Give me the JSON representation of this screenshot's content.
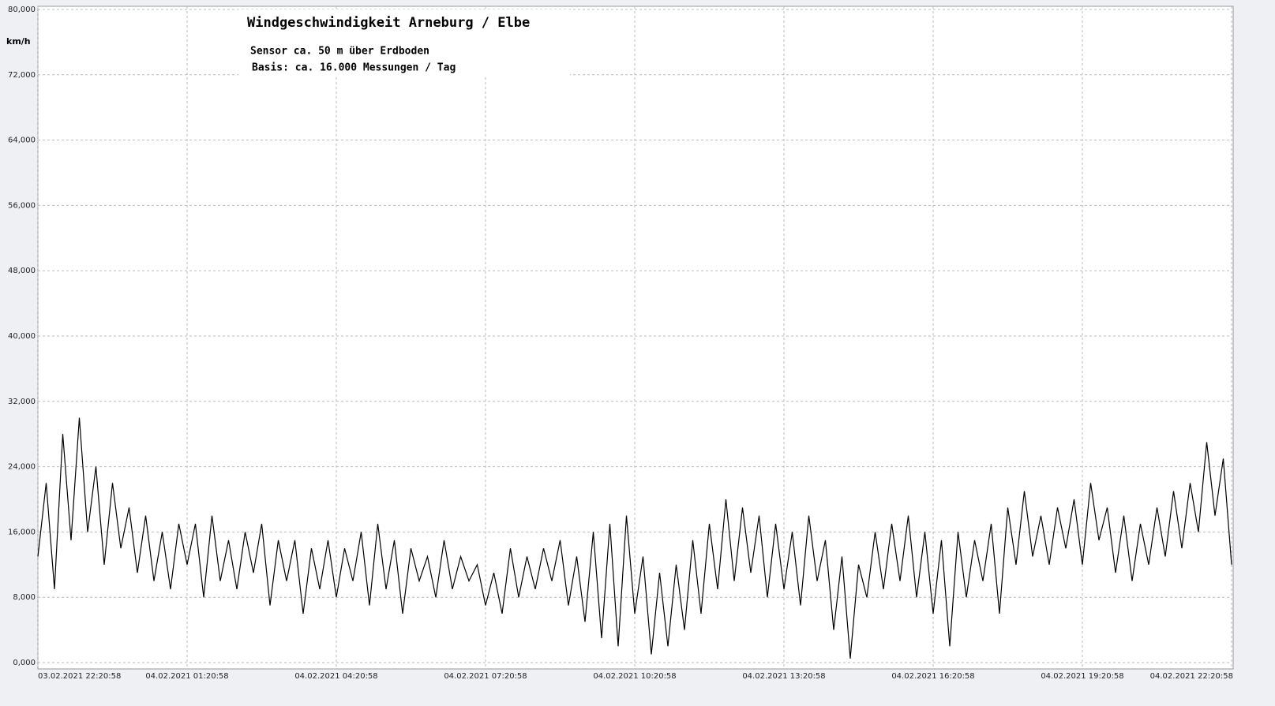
{
  "chart_data": {
    "type": "line",
    "title": "Windgeschwindigkeit  Arneburg / Elbe",
    "subtitle": [
      "Sensor ca. 50 m über Erdboden",
      "Basis: ca. 16.000 Messungen / Tag"
    ],
    "y_label": "km/h",
    "grid": true,
    "ylim": [
      0,
      80
    ],
    "yticks": [
      {
        "value": 0,
        "label": "0,000"
      },
      {
        "value": 8,
        "label": "8,000"
      },
      {
        "value": 16,
        "label": "16,000"
      },
      {
        "value": 24,
        "label": "24,000"
      },
      {
        "value": 32,
        "label": "32,000"
      },
      {
        "value": 40,
        "label": "40,000"
      },
      {
        "value": 48,
        "label": "48,000"
      },
      {
        "value": 56,
        "label": "56,000"
      },
      {
        "value": 64,
        "label": "64,000"
      },
      {
        "value": 72,
        "label": "72,000"
      },
      {
        "value": 80,
        "label": "80,000"
      }
    ],
    "xlim": [
      "03.02.2021 22:20:58",
      "04.02.2021 22:20:58"
    ],
    "xticks": [
      "03.02.2021 22:20:58",
      "04.02.2021 01:20:58",
      "04.02.2021 04:20:58",
      "04.02.2021 07:20:58",
      "04.02.2021 10:20:58",
      "04.02.2021 13:20:58",
      "04.02.2021 16:20:58",
      "04.02.2021 19:20:58",
      "04.02.2021 22:20:58"
    ],
    "x": [
      "03.02.2021 22:20:58",
      "03.02.2021 22:30:58",
      "03.02.2021 22:40:58",
      "03.02.2021 22:50:58",
      "03.02.2021 23:00:58",
      "03.02.2021 23:10:58",
      "03.02.2021 23:20:58",
      "03.02.2021 23:30:58",
      "03.02.2021 23:40:58",
      "03.02.2021 23:50:58",
      "04.02.2021 00:00:58",
      "04.02.2021 00:10:58",
      "04.02.2021 00:20:58",
      "04.02.2021 00:30:58",
      "04.02.2021 00:40:58",
      "04.02.2021 00:50:58",
      "04.02.2021 01:00:58",
      "04.02.2021 01:10:58",
      "04.02.2021 01:20:58",
      "04.02.2021 01:30:58",
      "04.02.2021 01:40:58",
      "04.02.2021 01:50:58",
      "04.02.2021 02:00:58",
      "04.02.2021 02:10:58",
      "04.02.2021 02:20:58",
      "04.02.2021 02:30:58",
      "04.02.2021 02:40:58",
      "04.02.2021 02:50:58",
      "04.02.2021 03:00:58",
      "04.02.2021 03:10:58",
      "04.02.2021 03:20:58",
      "04.02.2021 03:30:58",
      "04.02.2021 03:40:58",
      "04.02.2021 03:50:58",
      "04.02.2021 04:00:58",
      "04.02.2021 04:10:58",
      "04.02.2021 04:20:58",
      "04.02.2021 04:30:58",
      "04.02.2021 04:40:58",
      "04.02.2021 04:50:58",
      "04.02.2021 05:00:58",
      "04.02.2021 05:10:58",
      "04.02.2021 05:20:58",
      "04.02.2021 05:30:58",
      "04.02.2021 05:40:58",
      "04.02.2021 05:50:58",
      "04.02.2021 06:00:58",
      "04.02.2021 06:10:58",
      "04.02.2021 06:20:58",
      "04.02.2021 06:30:58",
      "04.02.2021 06:40:58",
      "04.02.2021 06:50:58",
      "04.02.2021 07:00:58",
      "04.02.2021 07:10:58",
      "04.02.2021 07:20:58",
      "04.02.2021 07:30:58",
      "04.02.2021 07:40:58",
      "04.02.2021 07:50:58",
      "04.02.2021 08:00:58",
      "04.02.2021 08:10:58",
      "04.02.2021 08:20:58",
      "04.02.2021 08:30:58",
      "04.02.2021 08:40:58",
      "04.02.2021 08:50:58",
      "04.02.2021 09:00:58",
      "04.02.2021 09:10:58",
      "04.02.2021 09:20:58",
      "04.02.2021 09:30:58",
      "04.02.2021 09:40:58",
      "04.02.2021 09:50:58",
      "04.02.2021 10:00:58",
      "04.02.2021 10:10:58",
      "04.02.2021 10:20:58",
      "04.02.2021 10:30:58",
      "04.02.2021 10:40:58",
      "04.02.2021 10:50:58",
      "04.02.2021 11:00:58",
      "04.02.2021 11:10:58",
      "04.02.2021 11:20:58",
      "04.02.2021 11:30:58",
      "04.02.2021 11:40:58",
      "04.02.2021 11:50:58",
      "04.02.2021 12:00:58",
      "04.02.2021 12:10:58",
      "04.02.2021 12:20:58",
      "04.02.2021 12:30:58",
      "04.02.2021 12:40:58",
      "04.02.2021 12:50:58",
      "04.02.2021 13:00:58",
      "04.02.2021 13:10:58",
      "04.02.2021 13:20:58",
      "04.02.2021 13:30:58",
      "04.02.2021 13:40:58",
      "04.02.2021 13:50:58",
      "04.02.2021 14:00:58",
      "04.02.2021 14:10:58",
      "04.02.2021 14:20:58",
      "04.02.2021 14:30:58",
      "04.02.2021 14:40:58",
      "04.02.2021 14:50:58",
      "04.02.2021 15:00:58",
      "04.02.2021 15:10:58",
      "04.02.2021 15:20:58",
      "04.02.2021 15:30:58",
      "04.02.2021 15:40:58",
      "04.02.2021 15:50:58",
      "04.02.2021 16:00:58",
      "04.02.2021 16:10:58",
      "04.02.2021 16:20:58",
      "04.02.2021 16:30:58",
      "04.02.2021 16:40:58",
      "04.02.2021 16:50:58",
      "04.02.2021 17:00:58",
      "04.02.2021 17:10:58",
      "04.02.2021 17:20:58",
      "04.02.2021 17:30:58",
      "04.02.2021 17:40:58",
      "04.02.2021 17:50:58",
      "04.02.2021 18:00:58",
      "04.02.2021 18:10:58",
      "04.02.2021 18:20:58",
      "04.02.2021 18:30:58",
      "04.02.2021 18:40:58",
      "04.02.2021 18:50:58",
      "04.02.2021 19:00:58",
      "04.02.2021 19:10:58",
      "04.02.2021 19:20:58",
      "04.02.2021 19:30:58",
      "04.02.2021 19:40:58",
      "04.02.2021 19:50:58",
      "04.02.2021 20:00:58",
      "04.02.2021 20:10:58",
      "04.02.2021 20:20:58",
      "04.02.2021 20:30:58",
      "04.02.2021 20:40:58",
      "04.02.2021 20:50:58",
      "04.02.2021 21:00:58",
      "04.02.2021 21:10:58",
      "04.02.2021 21:20:58",
      "04.02.2021 21:30:58",
      "04.02.2021 21:40:58",
      "04.02.2021 21:50:58",
      "04.02.2021 22:00:58",
      "04.02.2021 22:10:58",
      "04.02.2021 22:20:58"
    ],
    "series": [
      {
        "color": "#000000",
        "values": [
          13,
          22,
          9,
          28,
          15,
          30,
          16,
          24,
          12,
          22,
          14,
          19,
          11,
          18,
          10,
          16,
          9,
          17,
          12,
          17,
          8,
          18,
          10,
          15,
          9,
          16,
          11,
          17,
          7,
          15,
          10,
          15,
          6,
          14,
          9,
          15,
          8,
          14,
          10,
          16,
          7,
          17,
          9,
          15,
          6,
          14,
          10,
          13,
          8,
          15,
          9,
          13,
          10,
          12,
          7,
          11,
          6,
          14,
          8,
          13,
          9,
          14,
          10,
          15,
          7,
          13,
          5,
          16,
          3,
          17,
          2,
          18,
          6,
          13,
          1,
          11,
          2,
          12,
          4,
          15,
          6,
          17,
          9,
          20,
          10,
          19,
          11,
          18,
          8,
          17,
          9,
          16,
          7,
          18,
          10,
          15,
          4,
          13,
          0.5,
          12,
          8,
          16,
          9,
          17,
          10,
          18,
          8,
          16,
          6,
          15,
          2,
          16,
          8,
          15,
          10,
          17,
          6,
          19,
          12,
          21,
          13,
          18,
          12,
          19,
          14,
          20,
          12,
          22,
          15,
          19,
          11,
          18,
          10,
          17,
          12,
          19,
          13,
          21,
          14,
          22,
          16,
          27,
          18,
          25,
          12
        ]
      }
    ]
  }
}
